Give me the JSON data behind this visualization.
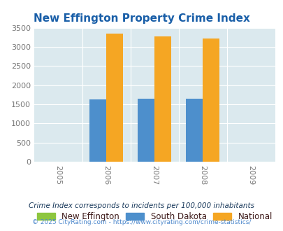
{
  "title": "New Effington Property Crime Index",
  "title_color": "#1a5fa8",
  "years": [
    2005,
    2006,
    2007,
    2008,
    2009
  ],
  "bar_years": [
    2006,
    2007,
    2008
  ],
  "new_effington": [
    0,
    0,
    0
  ],
  "south_dakota": [
    1620,
    1645,
    1650
  ],
  "national": [
    3340,
    3270,
    3215
  ],
  "color_new_effington": "#8dc63f",
  "color_south_dakota": "#4d8fcc",
  "color_national": "#f5a623",
  "ylim": [
    0,
    3500
  ],
  "yticks": [
    0,
    500,
    1000,
    1500,
    2000,
    2500,
    3000,
    3500
  ],
  "plot_bg_color": "#dbe9ee",
  "bar_width": 0.35,
  "legend_labels": [
    "New Effington",
    "South Dakota",
    "National"
  ],
  "legend_text_color": "#3d1a1a",
  "footnote": "Crime Index corresponds to incidents per 100,000 inhabitants",
  "footnote_color": "#1a3a5c",
  "copyright": "© 2025 CityRating.com - https://www.cityrating.com/crime-statistics/",
  "copyright_color": "#4d88cc"
}
